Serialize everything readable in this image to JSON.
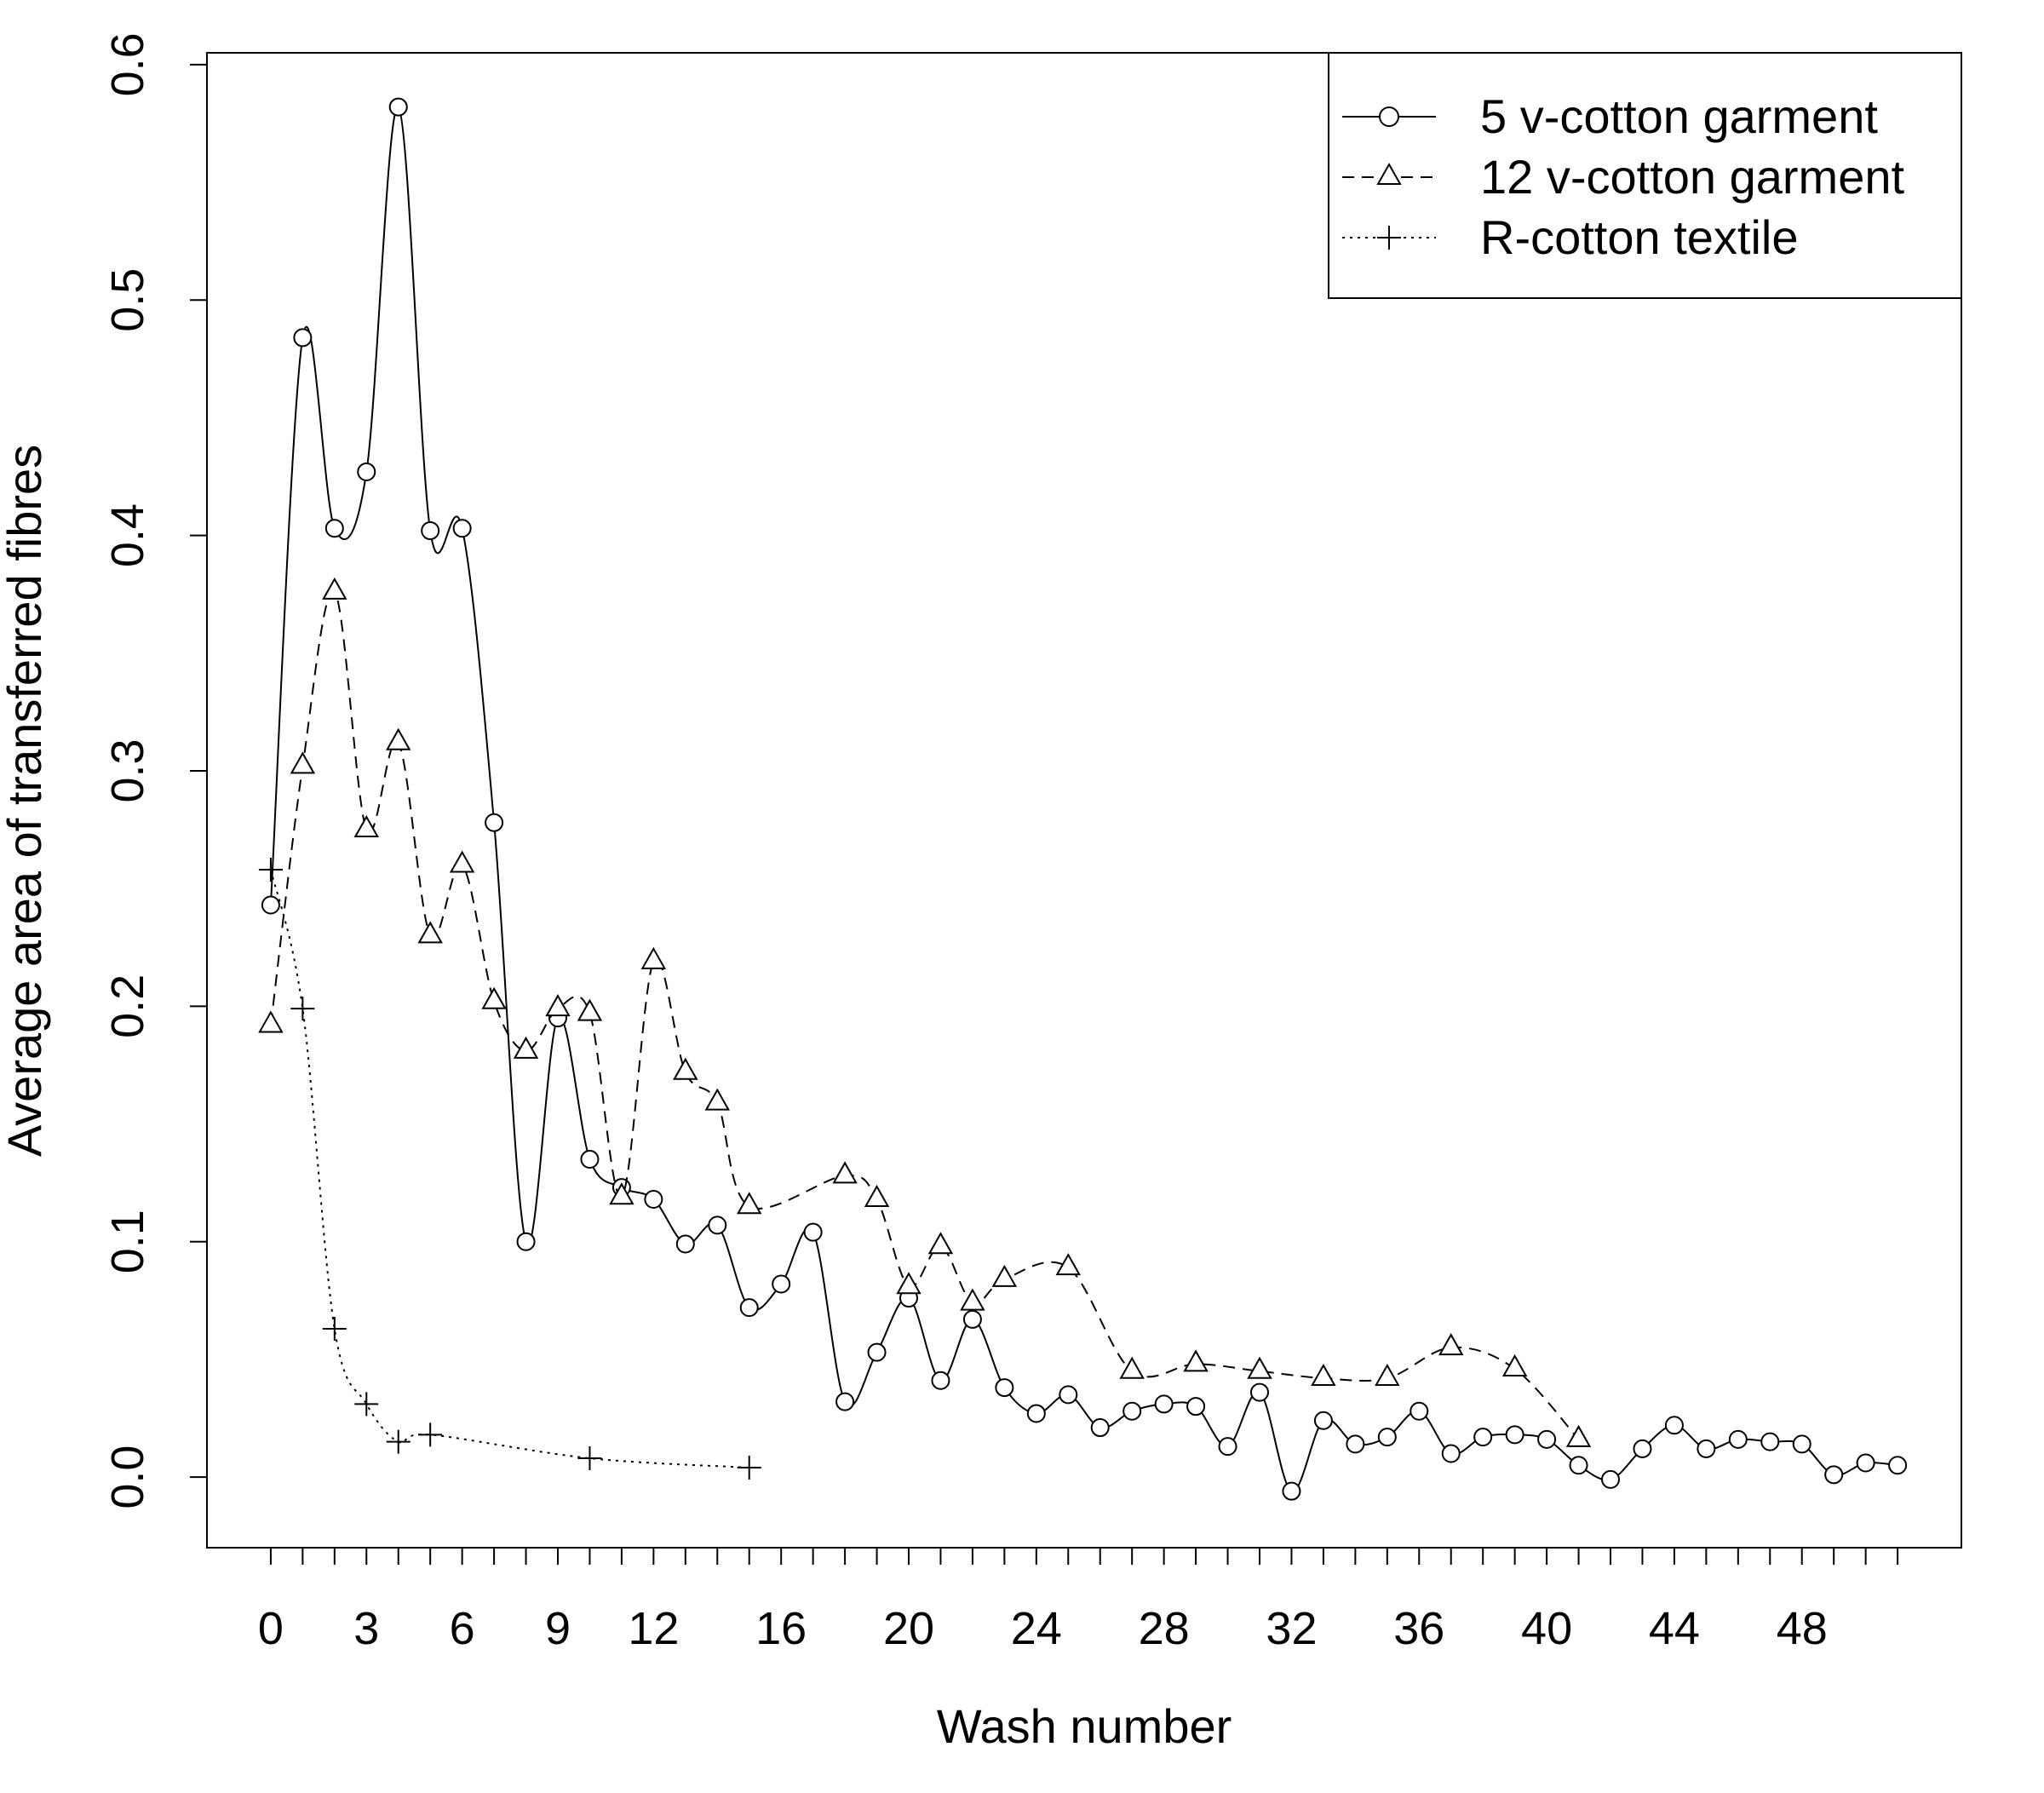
{
  "chart_data": {
    "type": "line",
    "xlabel": "Wash number",
    "ylabel": "Average area of transferred fibres",
    "xlim": [
      -2,
      53
    ],
    "ylim": [
      -0.03,
      0.605
    ],
    "x_ticks": [
      0,
      1,
      2,
      3,
      4,
      5,
      6,
      7,
      8,
      9,
      10,
      11,
      12,
      13,
      14,
      15,
      16,
      17,
      18,
      19,
      20,
      21,
      22,
      23,
      24,
      25,
      26,
      27,
      28,
      29,
      30,
      31,
      32,
      33,
      34,
      35,
      36,
      37,
      38,
      39,
      40,
      41,
      42,
      43,
      44,
      45,
      46,
      47,
      48,
      49,
      50,
      51
    ],
    "x_tick_labels": [
      {
        "x": 0,
        "label": "0"
      },
      {
        "x": 3,
        "label": "3"
      },
      {
        "x": 6,
        "label": "6"
      },
      {
        "x": 9,
        "label": "9"
      },
      {
        "x": 12,
        "label": "12"
      },
      {
        "x": 16,
        "label": "16"
      },
      {
        "x": 20,
        "label": "20"
      },
      {
        "x": 24,
        "label": "24"
      },
      {
        "x": 28,
        "label": "28"
      },
      {
        "x": 32,
        "label": "32"
      },
      {
        "x": 36,
        "label": "36"
      },
      {
        "x": 40,
        "label": "40"
      },
      {
        "x": 44,
        "label": "44"
      },
      {
        "x": 48,
        "label": "48"
      }
    ],
    "y_ticks": [
      {
        "y": 0.0,
        "label": "0.0"
      },
      {
        "y": 0.1,
        "label": "0.1"
      },
      {
        "y": 0.2,
        "label": "0.2"
      },
      {
        "y": 0.3,
        "label": "0.3"
      },
      {
        "y": 0.4,
        "label": "0.4"
      },
      {
        "y": 0.5,
        "label": "0.5"
      },
      {
        "y": 0.6,
        "label": "0.6"
      }
    ],
    "legend_position": "top-right",
    "series": [
      {
        "name": "5 v-cotton garment",
        "marker": "circle",
        "line": "solid",
        "x": [
          0,
          1,
          2,
          3,
          4,
          5,
          6,
          7,
          8,
          9,
          10,
          11,
          12,
          13,
          14,
          15,
          16,
          17,
          18,
          19,
          20,
          21,
          22,
          23,
          24,
          25,
          26,
          27,
          28,
          29,
          30,
          31,
          32,
          33,
          34,
          35,
          36,
          37,
          38,
          39,
          40,
          41,
          42,
          43,
          44,
          45,
          46,
          47,
          48,
          49,
          50,
          51
        ],
        "y": [
          0.243,
          0.484,
          0.403,
          0.427,
          0.582,
          0.402,
          0.403,
          0.278,
          0.1,
          0.195,
          0.135,
          0.123,
          0.118,
          0.099,
          0.107,
          0.072,
          0.082,
          0.104,
          0.032,
          0.053,
          0.076,
          0.041,
          0.067,
          0.038,
          0.027,
          0.035,
          0.021,
          0.028,
          0.031,
          0.03,
          0.013,
          0.036,
          -0.006,
          0.024,
          0.014,
          0.017,
          0.028,
          0.01,
          0.017,
          0.018,
          0.016,
          0.005,
          -0.001,
          0.012,
          0.022,
          0.012,
          0.016,
          0.015,
          0.014,
          0.001,
          0.006,
          0.005
        ]
      },
      {
        "name": "12 v-cotton garment",
        "marker": "triangle",
        "line": "dashed",
        "x": [
          0,
          1,
          2,
          3,
          4,
          5,
          6,
          7,
          8,
          9,
          10,
          11,
          12,
          13,
          14,
          15,
          18,
          19,
          20,
          21,
          22,
          23,
          25,
          27,
          29,
          31,
          33,
          35,
          37,
          39,
          41
        ],
        "y": [
          0.192,
          0.302,
          0.376,
          0.275,
          0.312,
          0.23,
          0.26,
          0.202,
          0.181,
          0.199,
          0.197,
          0.119,
          0.219,
          0.172,
          0.159,
          0.115,
          0.128,
          0.118,
          0.081,
          0.098,
          0.074,
          0.084,
          0.089,
          0.045,
          0.048,
          0.045,
          0.042,
          0.042,
          0.055,
          0.046,
          0.016
        ]
      },
      {
        "name": "R-cotton textile",
        "marker": "plus",
        "line": "dotted",
        "x": [
          0,
          1,
          2,
          3,
          4,
          5,
          10,
          15
        ],
        "y": [
          0.258,
          0.199,
          0.063,
          0.031,
          0.015,
          0.018,
          0.008,
          0.004
        ]
      }
    ]
  }
}
